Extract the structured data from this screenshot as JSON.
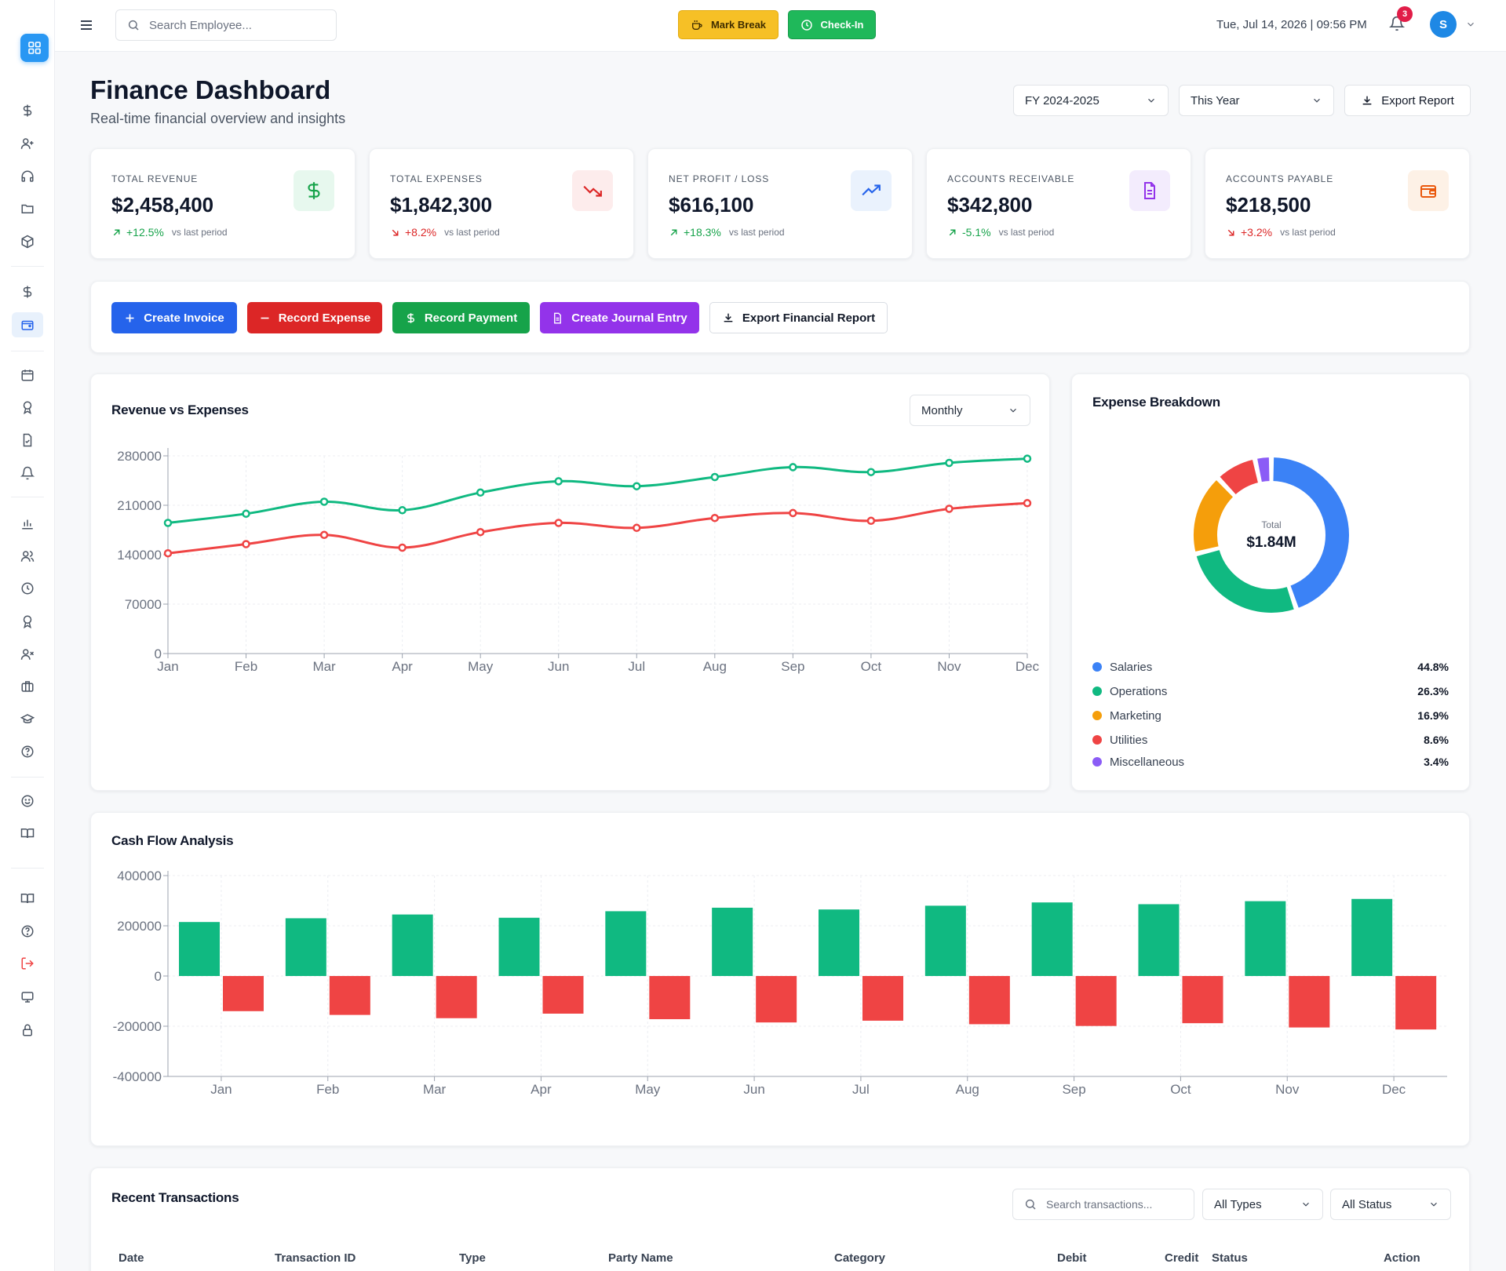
{
  "header": {
    "search_placeholder": "Search Employee...",
    "mark_break_label": "Mark Break",
    "check_in_label": "Check-In",
    "datetime": "Tue, Jul 14, 2026 | 09:56 PM",
    "notification_count": "3",
    "avatar_initial": "S"
  },
  "page": {
    "title": "Finance Dashboard",
    "subtitle": "Real-time financial overview and insights",
    "fiscal_year": "FY 2024-2025",
    "period": "This Year",
    "export_label": "Export Report"
  },
  "kpis": [
    {
      "label": "TOTAL REVENUE",
      "value": "$2,458,400",
      "change": "+12.5%",
      "vs": "vs last period",
      "trend": "up",
      "color": "#16a34a",
      "icon": "dollar-icon"
    },
    {
      "label": "TOTAL EXPENSES",
      "value": "$1,842,300",
      "change": "+8.2%",
      "vs": "vs last period",
      "trend": "down",
      "color": "#dc2626",
      "icon": "trending-down-icon"
    },
    {
      "label": "NET PROFIT / LOSS",
      "value": "$616,100",
      "change": "+18.3%",
      "vs": "vs last period",
      "trend": "up",
      "color": "#16a34a",
      "icon": "trending-up-icon"
    },
    {
      "label": "ACCOUNTS RECEIVABLE",
      "value": "$342,800",
      "change": "-5.1%",
      "vs": "vs last period",
      "trend": "up",
      "color": "#16a34a",
      "icon": "document-icon"
    },
    {
      "label": "ACCOUNTS PAYABLE",
      "value": "$218,500",
      "change": "+3.2%",
      "vs": "vs last period",
      "trend": "down",
      "color": "#dc2626",
      "icon": "wallet-icon"
    }
  ],
  "quick_actions": {
    "create_invoice": "Create Invoice",
    "record_expense": "Record Expense",
    "record_payment": "Record Payment",
    "create_journal_entry": "Create Journal Entry",
    "export_financial_report": "Export Financial Report"
  },
  "revenue_chart": {
    "title": "Revenue vs Expenses",
    "period_select": "Monthly"
  },
  "expense_breakdown": {
    "title": "Expense Breakdown",
    "center_label": "Total",
    "center_value": "$1.84M",
    "items": [
      {
        "name": "Salaries",
        "pct": "44.8%",
        "color": "#3b82f6"
      },
      {
        "name": "Operations",
        "pct": "26.3%",
        "color": "#10b981"
      },
      {
        "name": "Marketing",
        "pct": "16.9%",
        "color": "#f59e0b"
      },
      {
        "name": "Utilities",
        "pct": "8.6%",
        "color": "#ef4444"
      },
      {
        "name": "Miscellaneous",
        "pct": "3.4%",
        "color": "#8b5cf6"
      }
    ]
  },
  "cash_flow": {
    "title": "Cash Flow Analysis"
  },
  "transactions": {
    "title": "Recent Transactions",
    "search_placeholder": "Search transactions...",
    "type_filter": "All Types",
    "status_filter": "All Status",
    "columns": [
      "Date",
      "Transaction ID",
      "Type",
      "Party Name",
      "Category",
      "Debit",
      "Credit",
      "Status",
      "Action"
    ]
  },
  "chart_data": [
    {
      "type": "line",
      "categories": [
        "Jan",
        "Feb",
        "Mar",
        "Apr",
        "May",
        "Jun",
        "Jul",
        "Aug",
        "Sep",
        "Oct",
        "Nov",
        "Dec"
      ],
      "series": [
        {
          "name": "",
          "color": "#10b981",
          "values": [
            185000,
            198000,
            215000,
            203000,
            228000,
            244000,
            237000,
            250000,
            264000,
            257000,
            270000,
            276000
          ]
        },
        {
          "name": "",
          "color": "#ef4444",
          "values": [
            142000,
            155000,
            168000,
            150000,
            172000,
            185000,
            178000,
            192000,
            199000,
            188000,
            205000,
            213000
          ]
        }
      ],
      "ylim": [
        0,
        280000
      ],
      "yticks": [
        0,
        70000,
        140000,
        210000,
        280000
      ],
      "grid": true
    },
    {
      "type": "pie",
      "categories": [
        "Salaries",
        "Operations",
        "Marketing",
        "Utilities",
        "Miscellaneous"
      ],
      "values": [
        44.8,
        26.3,
        16.9,
        8.6,
        3.4
      ]
    },
    {
      "type": "bar",
      "categories": [
        "Jan",
        "Feb",
        "Mar",
        "Apr",
        "May",
        "Jun",
        "Jul",
        "Aug",
        "Sep",
        "Oct",
        "Nov",
        "Dec"
      ],
      "series": [
        {
          "name": "",
          "color": "#10b981",
          "values": [
            215000,
            230000,
            245000,
            232000,
            258000,
            272000,
            265000,
            280000,
            293000,
            286000,
            298000,
            307000
          ]
        },
        {
          "name": "",
          "color": "#ef4444",
          "values": [
            -140000,
            -155000,
            -168000,
            -150000,
            -172000,
            -185000,
            -178000,
            -192000,
            -199000,
            -188000,
            -205000,
            -213000
          ]
        }
      ],
      "ylim": [
        -400000,
        400000
      ],
      "yticks": [
        -400000,
        -200000,
        0,
        200000,
        400000
      ],
      "grid": true
    }
  ]
}
